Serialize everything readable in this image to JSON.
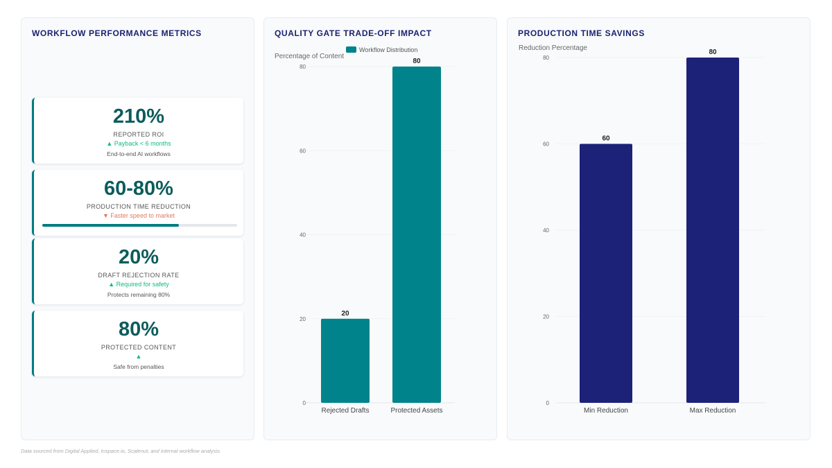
{
  "metrics_panel": {
    "title": "WORKFLOW PERFORMANCE METRICS",
    "cards": [
      {
        "value": "210%",
        "label": "REPORTED ROI",
        "trend": "▲ Payback < 6 months",
        "sub": "End-to-end AI workflows"
      },
      {
        "value": "60-80%",
        "label": "PRODUCTION TIME REDUCTION",
        "trend": "▼ Faster speed to market",
        "progress_pct": 70
      },
      {
        "value": "20%",
        "label": "DRAFT REJECTION RATE",
        "trend": "▲ Required for safety",
        "sub": "Protects remaining 80%"
      },
      {
        "value": "80%",
        "label": "PROTECTED CONTENT",
        "trend": "▲",
        "sub": "Safe from penalties"
      }
    ]
  },
  "chart_data": [
    {
      "type": "bar",
      "title": "QUALITY GATE TRADE-OFF IMPACT",
      "ylabel": "Percentage of Content",
      "categories": [
        "Rejected Drafts",
        "Protected Assets"
      ],
      "series": [
        {
          "name": "Workflow Distribution",
          "values": [
            20,
            80
          ],
          "color": "#00838a"
        }
      ],
      "ylim": [
        0,
        80
      ],
      "yticks": [
        0,
        20,
        40,
        60,
        80
      ],
      "legend": "top"
    },
    {
      "type": "bar",
      "title": "PRODUCTION TIME SAVINGS",
      "ylabel": "Reduction Percentage",
      "categories": [
        "Min Reduction",
        "Max Reduction"
      ],
      "series": [
        {
          "values": [
            60,
            80
          ],
          "color": "#1c2278"
        }
      ],
      "ylim": [
        0,
        80
      ],
      "yticks": [
        0,
        20,
        40,
        60,
        80
      ]
    }
  ],
  "footer": "Data sourced from Digital Applied, Inspace.io, Scalenut, and internal workflow analysis."
}
